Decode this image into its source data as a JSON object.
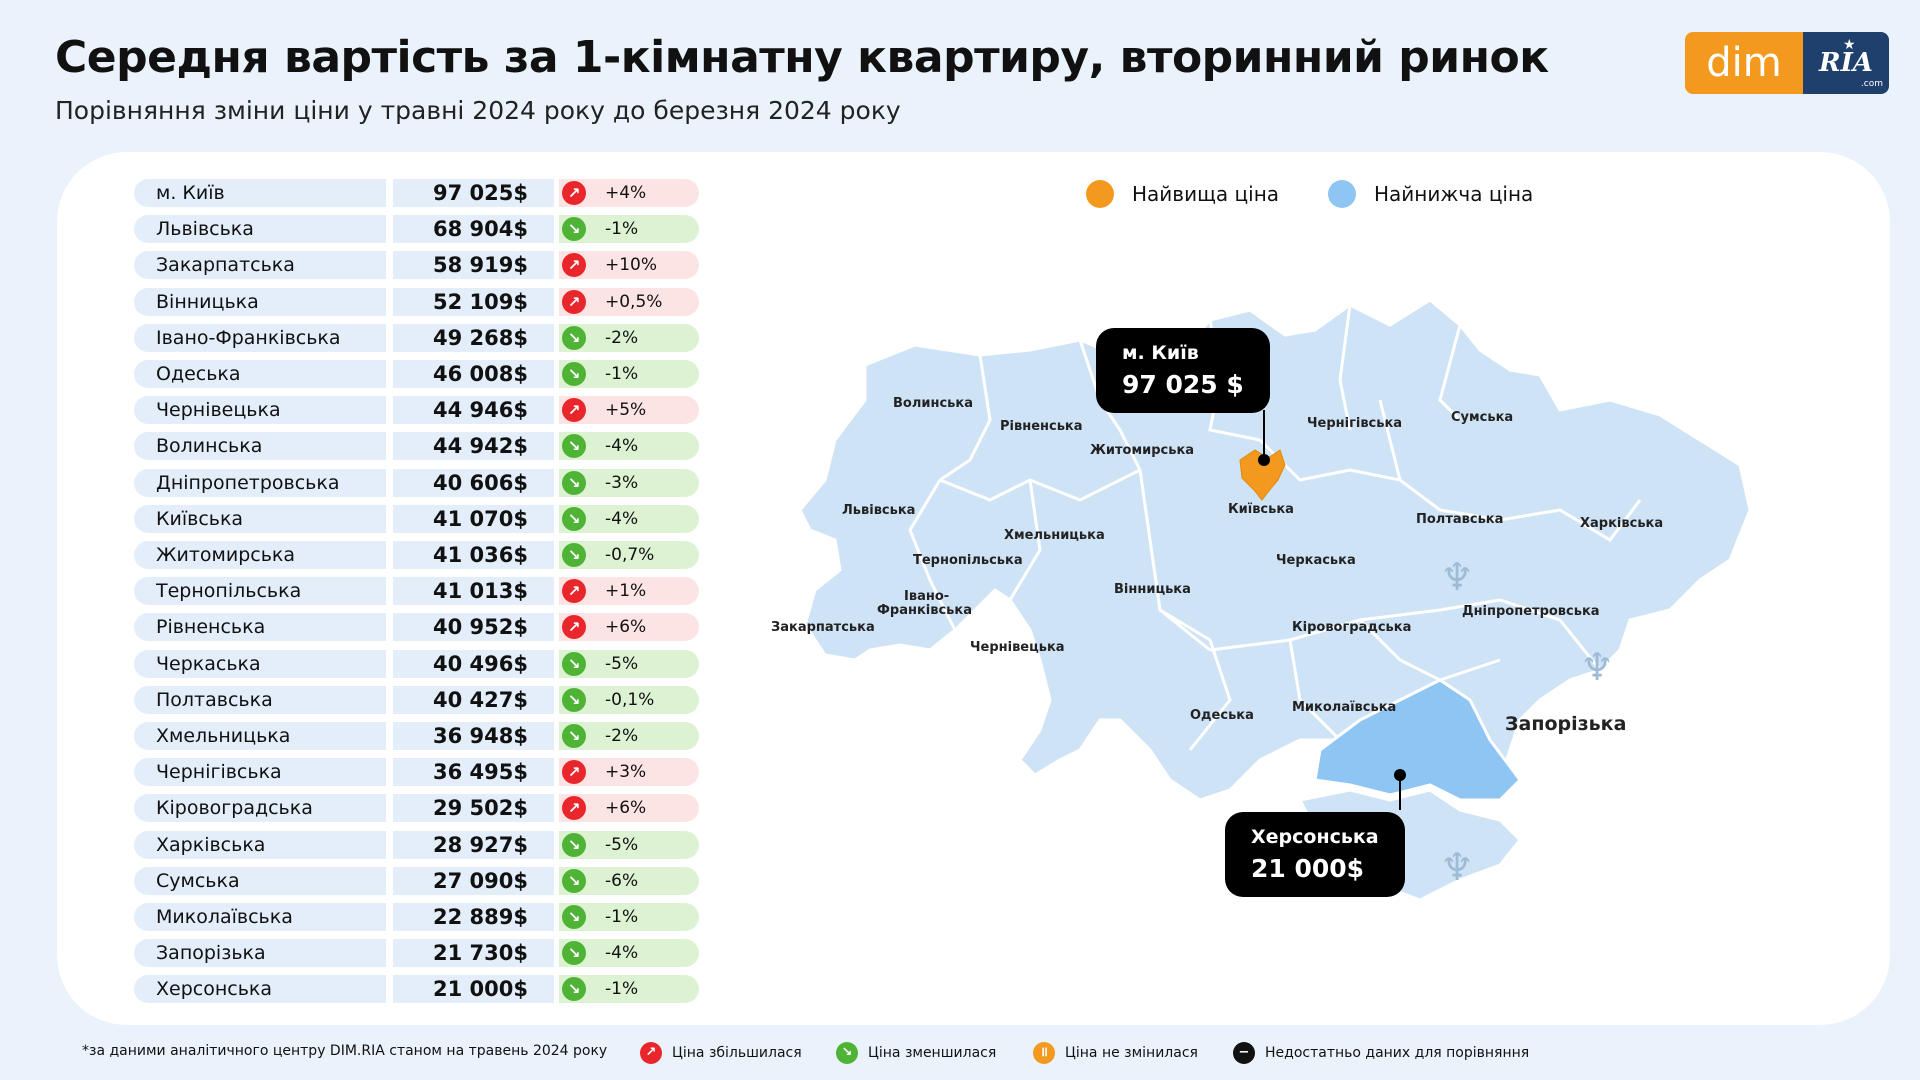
{
  "header": {
    "title": "Середня вартість за 1-кімнатну квартиру, вторинний ринок",
    "subtitle": "Порівняння зміни ціни у травні 2024 року до березня 2024 року"
  },
  "logo": {
    "left": "dim",
    "right": "RIA",
    "suffix": ".com"
  },
  "legend": {
    "highest": {
      "label": "Найвища ціна",
      "color": "#f39a1e"
    },
    "lowest": {
      "label": "Найнижча ціна",
      "color": "#8ec5f3"
    }
  },
  "chart_data": {
    "type": "table",
    "columns": [
      "region",
      "price",
      "change"
    ],
    "rows": [
      {
        "region": "м. Київ",
        "price": "97 025$",
        "change": "+4%",
        "trend": "up"
      },
      {
        "region": "Львівська",
        "price": "68 904$",
        "change": "-1%",
        "trend": "down"
      },
      {
        "region": "Закарпатська",
        "price": "58 919$",
        "change": "+10%",
        "trend": "up"
      },
      {
        "region": "Вінницька",
        "price": "52 109$",
        "change": "+0,5%",
        "trend": "up"
      },
      {
        "region": "Івано-Франківська",
        "price": "49 268$",
        "change": "-2%",
        "trend": "down"
      },
      {
        "region": "Одеська",
        "price": "46 008$",
        "change": "-1%",
        "trend": "down"
      },
      {
        "region": "Чернівецька",
        "price": "44 946$",
        "change": "+5%",
        "trend": "up"
      },
      {
        "region": "Волинська",
        "price": "44 942$",
        "change": "-4%",
        "trend": "down"
      },
      {
        "region": "Дніпропетровська",
        "price": "40 606$",
        "change": "-3%",
        "trend": "down"
      },
      {
        "region": "Київська",
        "price": "41 070$",
        "change": "-4%",
        "trend": "down"
      },
      {
        "region": "Житомирська",
        "price": "41 036$",
        "change": "-0,7%",
        "trend": "down"
      },
      {
        "region": "Тернопільська",
        "price": "41 013$",
        "change": "+1%",
        "trend": "up"
      },
      {
        "region": "Рівненська",
        "price": "40 952$",
        "change": "+6%",
        "trend": "up"
      },
      {
        "region": "Черкаська",
        "price": "40 496$",
        "change": "-5%",
        "trend": "down"
      },
      {
        "region": "Полтавська",
        "price": "40 427$",
        "change": "-0,1%",
        "trend": "down"
      },
      {
        "region": "Хмельницька",
        "price": "36 948$",
        "change": "-2%",
        "trend": "down"
      },
      {
        "region": "Чернігівська",
        "price": "36 495$",
        "change": "+3%",
        "trend": "up"
      },
      {
        "region": "Кіровоградська",
        "price": "29 502$",
        "change": "+6%",
        "trend": "up"
      },
      {
        "region": "Харківська",
        "price": "28 927$",
        "change": "-5%",
        "trend": "down"
      },
      {
        "region": "Сумська",
        "price": "27 090$",
        "change": "-6%",
        "trend": "down"
      },
      {
        "region": "Миколаївська",
        "price": "22 889$",
        "change": "-1%",
        "trend": "down"
      },
      {
        "region": "Запорізька",
        "price": "21 730$",
        "change": "-4%",
        "trend": "down"
      },
      {
        "region": "Херсонська",
        "price": "21 000$",
        "change": "-1%",
        "trend": "down"
      }
    ]
  },
  "map": {
    "labels": [
      "Волинська",
      "Рівненська",
      "Житомирська",
      "Чернігівська",
      "Сумська",
      "Львівська",
      "Київська",
      "Полтавська",
      "Харківська",
      "Хмельницька",
      "Тернопільська",
      "Черкаська",
      "Вінницька",
      "Івано-",
      "Франківська",
      "Закарпатська",
      "Чернівецька",
      "Кіровоградська",
      "Дніпропетровська",
      "Одеська",
      "Миколаївська",
      "Запорізька"
    ],
    "callout_high": {
      "name": "м. Київ",
      "price": "97 025 $"
    },
    "callout_low": {
      "name": "Херсонська",
      "price": "21 000$"
    },
    "colors": {
      "base": "#cfe3f7",
      "kherson": "#8ec5f3",
      "kyiv": "#f39a1e"
    }
  },
  "footer": {
    "note": "*за даними аналітичного центру DIM.RIA станом на травень 2024 року",
    "legend": [
      {
        "label": "Ціна збільшилася",
        "color": "#e8262b",
        "icon": "arrow-up-right-icon"
      },
      {
        "label": "Ціна зменшилася",
        "color": "#4fb336",
        "icon": "arrow-down-right-icon"
      },
      {
        "label": "Ціна не змінилася",
        "color": "#f39a1e",
        "icon": "pause-icon"
      },
      {
        "label": "Недостатньо даних для порівняння",
        "color": "#111111",
        "icon": "minus-icon"
      }
    ]
  }
}
